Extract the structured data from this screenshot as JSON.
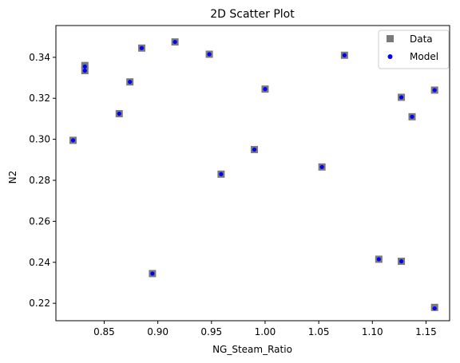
{
  "chart_data": {
    "type": "scatter",
    "title": "2D Scatter Plot",
    "xlabel": "NG_Steam_Ratio",
    "ylabel": "N2",
    "xlim": [
      0.805,
      1.172
    ],
    "ylim": [
      0.2115,
      0.3555
    ],
    "xticks": [
      0.85,
      0.9,
      0.95,
      1.0,
      1.05,
      1.1,
      1.15
    ],
    "xtick_labels": [
      "0.85",
      "0.90",
      "0.95",
      "1.00",
      "1.05",
      "1.10",
      "1.15"
    ],
    "yticks": [
      0.22,
      0.24,
      0.26,
      0.28,
      0.3,
      0.32,
      0.34
    ],
    "ytick_labels": [
      "0.22",
      "0.24",
      "0.26",
      "0.28",
      "0.30",
      "0.32",
      "0.34"
    ],
    "grid": false,
    "legend_position": "top-right",
    "series": [
      {
        "name": "Data",
        "marker": "square",
        "color": "#7a7a7a",
        "x": [
          0.821,
          0.832,
          0.832,
          0.864,
          0.874,
          0.885,
          0.895,
          0.916,
          0.948,
          0.959,
          0.99,
          1.0,
          1.053,
          1.074,
          1.106,
          1.127,
          1.127,
          1.137,
          1.158,
          1.158
        ],
        "y": [
          0.2995,
          0.336,
          0.3335,
          0.3125,
          0.328,
          0.3445,
          0.2345,
          0.3475,
          0.3415,
          0.283,
          0.295,
          0.3245,
          0.2865,
          0.341,
          0.2415,
          0.2405,
          0.3205,
          0.311,
          0.324,
          0.218
        ]
      },
      {
        "name": "Model",
        "marker": "circle",
        "color": "#0000ff",
        "x": [
          0.821,
          0.832,
          0.832,
          0.864,
          0.874,
          0.885,
          0.895,
          0.916,
          0.948,
          0.959,
          0.99,
          1.0,
          1.053,
          1.074,
          1.106,
          1.127,
          1.127,
          1.137,
          1.158,
          1.158
        ],
        "y": [
          0.2995,
          0.3355,
          0.3335,
          0.3125,
          0.328,
          0.3445,
          0.2345,
          0.3475,
          0.3415,
          0.283,
          0.295,
          0.3245,
          0.2865,
          0.341,
          0.2415,
          0.2405,
          0.3205,
          0.311,
          0.324,
          0.2175
        ]
      }
    ]
  }
}
